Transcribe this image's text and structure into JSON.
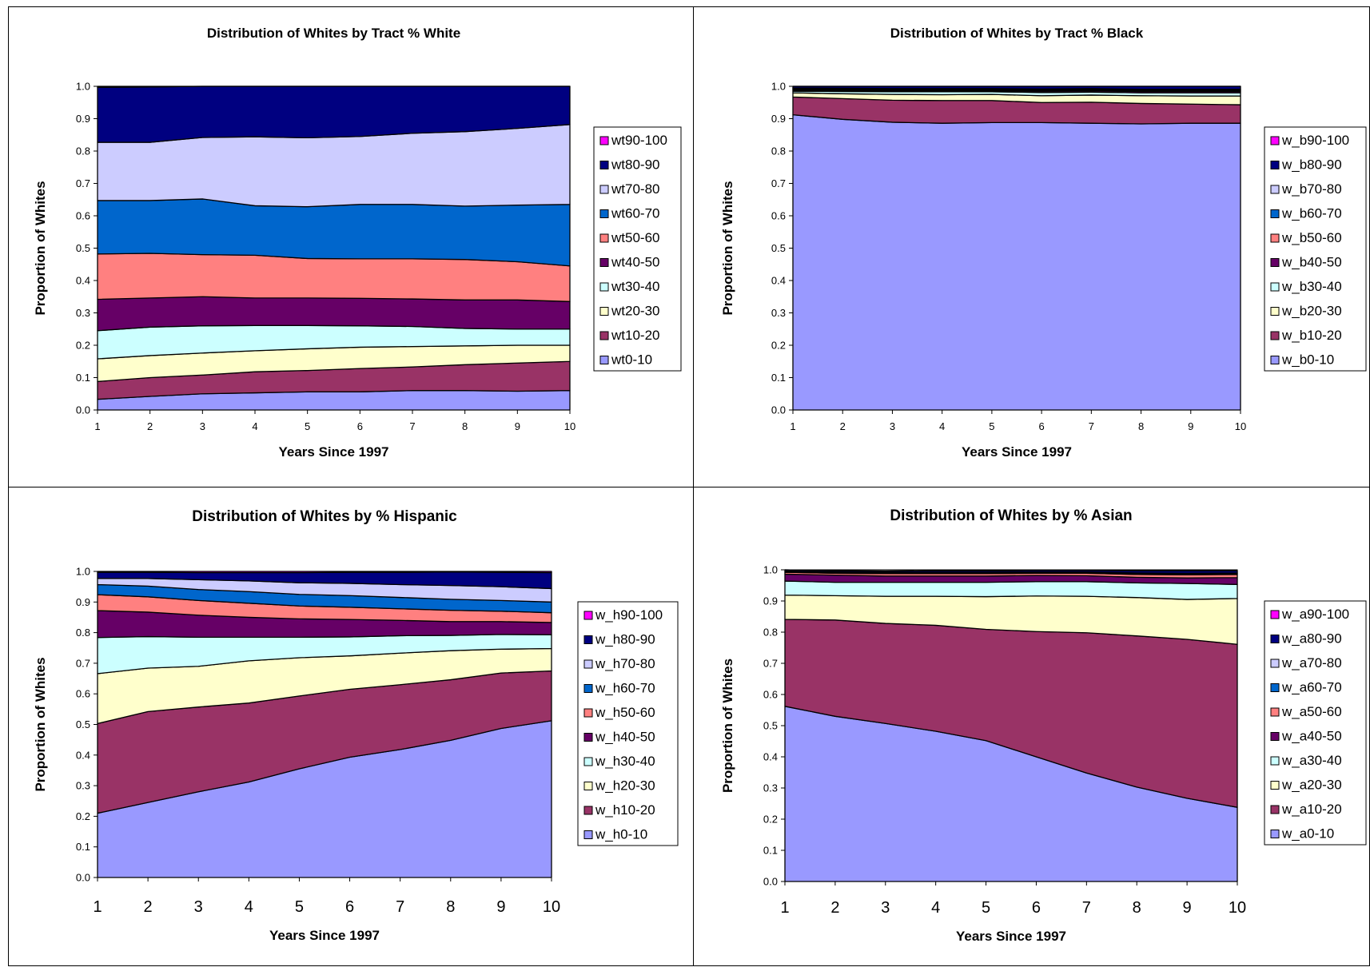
{
  "colors": {
    "c0": "#9999FF",
    "c1": "#993366",
    "c2": "#FFFFCC",
    "c3": "#CCFFFF",
    "c4": "#660066",
    "c5": "#FF8080",
    "c6": "#0066CC",
    "c7": "#CCCCFF",
    "c8": "#000080",
    "c9": "#FF00FF"
  },
  "chart_data": [
    {
      "type": "area",
      "stacked": true,
      "title": "Distribution of Whites by Tract % White",
      "xlabel": "Years Since 1997",
      "ylabel": "Proportion of Whites",
      "x": [
        1,
        2,
        3,
        4,
        5,
        6,
        7,
        8,
        9,
        10
      ],
      "ylim": [
        0,
        1.0
      ],
      "yticks": [
        "0.0",
        "0.1",
        "0.2",
        "0.3",
        "0.4",
        "0.5",
        "0.6",
        "0.7",
        "0.8",
        "0.9",
        "1.0"
      ],
      "xtick_size": "small",
      "legend_position": "right",
      "series": [
        {
          "name": "wt0-10",
          "values": [
            0.033,
            0.042,
            0.05,
            0.053,
            0.056,
            0.056,
            0.06,
            0.06,
            0.058,
            0.06
          ]
        },
        {
          "name": "wt10-20",
          "values": [
            0.055,
            0.058,
            0.058,
            0.065,
            0.066,
            0.072,
            0.073,
            0.08,
            0.087,
            0.09
          ]
        },
        {
          "name": "wt20-30",
          "values": [
            0.07,
            0.068,
            0.068,
            0.065,
            0.067,
            0.066,
            0.063,
            0.058,
            0.055,
            0.05
          ]
        },
        {
          "name": "wt30-40",
          "values": [
            0.087,
            0.088,
            0.084,
            0.078,
            0.072,
            0.066,
            0.062,
            0.054,
            0.05,
            0.05
          ]
        },
        {
          "name": "wt40-50",
          "values": [
            0.097,
            0.09,
            0.09,
            0.085,
            0.085,
            0.085,
            0.085,
            0.088,
            0.09,
            0.085
          ]
        },
        {
          "name": "wt50-60",
          "values": [
            0.14,
            0.138,
            0.13,
            0.132,
            0.122,
            0.122,
            0.124,
            0.125,
            0.118,
            0.11
          ]
        },
        {
          "name": "wt60-70",
          "values": [
            0.165,
            0.163,
            0.172,
            0.153,
            0.16,
            0.168,
            0.168,
            0.165,
            0.175,
            0.19
          ]
        },
        {
          "name": "wt70-80",
          "values": [
            0.18,
            0.18,
            0.19,
            0.213,
            0.213,
            0.21,
            0.22,
            0.23,
            0.237,
            0.247
          ]
        },
        {
          "name": "wt80-90",
          "values": [
            0.17,
            0.171,
            0.158,
            0.156,
            0.159,
            0.155,
            0.145,
            0.14,
            0.13,
            0.118
          ]
        },
        {
          "name": "wt90-100",
          "values": [
            0.003,
            0.002,
            0.0,
            0.0,
            0.0,
            0.0,
            0.0,
            0.0,
            0.0,
            0.0
          ]
        }
      ]
    },
    {
      "type": "area",
      "stacked": true,
      "title": "Distribution of Whites by Tract % Black",
      "xlabel": "Years Since 1997",
      "ylabel": "Proportion of Whites",
      "x": [
        1,
        2,
        3,
        4,
        5,
        6,
        7,
        8,
        9,
        10
      ],
      "ylim": [
        0,
        1.0
      ],
      "yticks": [
        "0.0",
        "0.1",
        "0.2",
        "0.3",
        "0.4",
        "0.5",
        "0.6",
        "0.7",
        "0.8",
        "0.9",
        "1.0"
      ],
      "xtick_size": "small",
      "legend_position": "right",
      "series": [
        {
          "name": "w_b0-10",
          "values": [
            0.912,
            0.898,
            0.889,
            0.886,
            0.888,
            0.888,
            0.886,
            0.884,
            0.886,
            0.886
          ]
        },
        {
          "name": "w_b10-20",
          "values": [
            0.055,
            0.064,
            0.068,
            0.07,
            0.068,
            0.062,
            0.065,
            0.063,
            0.059,
            0.057
          ]
        },
        {
          "name": "w_b20-30",
          "values": [
            0.013,
            0.015,
            0.018,
            0.018,
            0.019,
            0.021,
            0.022,
            0.024,
            0.025,
            0.027
          ]
        },
        {
          "name": "w_b30-40",
          "values": [
            0.005,
            0.007,
            0.008,
            0.009,
            0.008,
            0.01,
            0.009,
            0.009,
            0.01,
            0.01
          ]
        },
        {
          "name": "w_b40-50",
          "values": [
            0.003,
            0.003,
            0.003,
            0.003,
            0.003,
            0.004,
            0.004,
            0.004,
            0.004,
            0.004
          ]
        },
        {
          "name": "w_b50-60",
          "values": [
            0.003,
            0.003,
            0.003,
            0.003,
            0.003,
            0.003,
            0.003,
            0.003,
            0.003,
            0.003
          ]
        },
        {
          "name": "w_b60-70",
          "values": [
            0.002,
            0.002,
            0.002,
            0.002,
            0.002,
            0.002,
            0.002,
            0.002,
            0.002,
            0.002
          ]
        },
        {
          "name": "w_b70-80",
          "values": [
            0.002,
            0.002,
            0.002,
            0.002,
            0.002,
            0.002,
            0.002,
            0.002,
            0.002,
            0.002
          ]
        },
        {
          "name": "w_b80-90",
          "values": [
            0.005,
            0.006,
            0.007,
            0.007,
            0.007,
            0.008,
            0.007,
            0.009,
            0.009,
            0.009
          ]
        },
        {
          "name": "w_b90-100",
          "values": [
            0.0,
            0.0,
            0.0,
            0.0,
            0.0,
            0.0,
            0.0,
            0.0,
            0.0,
            0.0
          ]
        }
      ]
    },
    {
      "type": "area",
      "stacked": true,
      "title": "Distribution of Whites by % Hispanic",
      "xlabel": "Years Since 1997",
      "ylabel": "Proportion of Whites",
      "x": [
        1,
        2,
        3,
        4,
        5,
        6,
        7,
        8,
        9,
        10
      ],
      "ylim": [
        0,
        1.0
      ],
      "yticks": [
        "0.0",
        "0.1",
        "0.2",
        "0.3",
        "0.4",
        "0.5",
        "0.6",
        "0.7",
        "0.8",
        "0.9",
        "1.0"
      ],
      "xtick_size": "large",
      "legend_position": "right",
      "series": [
        {
          "name": "w_h0-10",
          "values": [
            0.21,
            0.245,
            0.28,
            0.312,
            0.355,
            0.393,
            0.418,
            0.448,
            0.487,
            0.512
          ]
        },
        {
          "name": "w_h10-20",
          "values": [
            0.293,
            0.297,
            0.277,
            0.258,
            0.238,
            0.222,
            0.212,
            0.198,
            0.181,
            0.163
          ]
        },
        {
          "name": "w_h20-30",
          "values": [
            0.163,
            0.142,
            0.133,
            0.138,
            0.125,
            0.109,
            0.103,
            0.095,
            0.078,
            0.073
          ]
        },
        {
          "name": "w_h30-40",
          "values": [
            0.118,
            0.103,
            0.095,
            0.077,
            0.067,
            0.062,
            0.057,
            0.05,
            0.048,
            0.045
          ]
        },
        {
          "name": "w_h40-50",
          "values": [
            0.088,
            0.08,
            0.072,
            0.065,
            0.06,
            0.057,
            0.05,
            0.045,
            0.042,
            0.04
          ]
        },
        {
          "name": "w_h50-60",
          "values": [
            0.052,
            0.05,
            0.048,
            0.046,
            0.042,
            0.04,
            0.038,
            0.037,
            0.034,
            0.032
          ]
        },
        {
          "name": "w_h60-70",
          "values": [
            0.033,
            0.035,
            0.036,
            0.038,
            0.038,
            0.038,
            0.037,
            0.036,
            0.035,
            0.035
          ]
        },
        {
          "name": "w_h70-80",
          "values": [
            0.02,
            0.025,
            0.032,
            0.035,
            0.038,
            0.04,
            0.042,
            0.045,
            0.045,
            0.044
          ]
        },
        {
          "name": "w_h80-90",
          "values": [
            0.02,
            0.02,
            0.023,
            0.027,
            0.033,
            0.036,
            0.04,
            0.044,
            0.047,
            0.052
          ]
        },
        {
          "name": "w_h90-100",
          "values": [
            0.003,
            0.003,
            0.004,
            0.004,
            0.004,
            0.003,
            0.003,
            0.002,
            0.003,
            0.004
          ]
        }
      ]
    },
    {
      "type": "area",
      "stacked": true,
      "title": "Distribution of Whites by % Asian",
      "xlabel": "Years Since 1997",
      "ylabel": "Proportion of Whites",
      "x": [
        1,
        2,
        3,
        4,
        5,
        6,
        7,
        8,
        9,
        10
      ],
      "ylim": [
        0,
        1.0
      ],
      "yticks": [
        "0.0",
        "0.1",
        "0.2",
        "0.3",
        "0.4",
        "0.5",
        "0.6",
        "0.7",
        "0.8",
        "0.9",
        "1.0"
      ],
      "xtick_size": "large",
      "legend_position": "right",
      "series": [
        {
          "name": "w_a0-10",
          "values": [
            0.562,
            0.53,
            0.507,
            0.482,
            0.452,
            0.4,
            0.348,
            0.303,
            0.267,
            0.238
          ]
        },
        {
          "name": "w_a10-20",
          "values": [
            0.279,
            0.309,
            0.321,
            0.34,
            0.357,
            0.402,
            0.45,
            0.485,
            0.51,
            0.523
          ]
        },
        {
          "name": "w_a20-30",
          "values": [
            0.078,
            0.078,
            0.087,
            0.093,
            0.105,
            0.114,
            0.117,
            0.123,
            0.128,
            0.147
          ]
        },
        {
          "name": "w_a30-40",
          "values": [
            0.045,
            0.043,
            0.045,
            0.045,
            0.046,
            0.046,
            0.047,
            0.047,
            0.051,
            0.045
          ]
        },
        {
          "name": "w_a40-50",
          "values": [
            0.022,
            0.023,
            0.02,
            0.02,
            0.02,
            0.02,
            0.019,
            0.018,
            0.018,
            0.022
          ]
        },
        {
          "name": "w_a50-60",
          "values": [
            0.006,
            0.006,
            0.008,
            0.008,
            0.008,
            0.007,
            0.008,
            0.009,
            0.01,
            0.01
          ]
        },
        {
          "name": "w_a60-70",
          "values": [
            0.002,
            0.002,
            0.002,
            0.002,
            0.002,
            0.002,
            0.002,
            0.003,
            0.003,
            0.003
          ]
        },
        {
          "name": "w_a70-80",
          "values": [
            0.002,
            0.002,
            0.002,
            0.002,
            0.002,
            0.002,
            0.002,
            0.002,
            0.002,
            0.002
          ]
        },
        {
          "name": "w_a80-90",
          "values": [
            0.004,
            0.004,
            0.004,
            0.005,
            0.005,
            0.005,
            0.005,
            0.007,
            0.008,
            0.007
          ]
        },
        {
          "name": "w_a90-100",
          "values": [
            0.0,
            0.0,
            0.0,
            0.0,
            0.0,
            0.0,
            0.0,
            0.0,
            0.0,
            0.0
          ]
        }
      ]
    }
  ]
}
